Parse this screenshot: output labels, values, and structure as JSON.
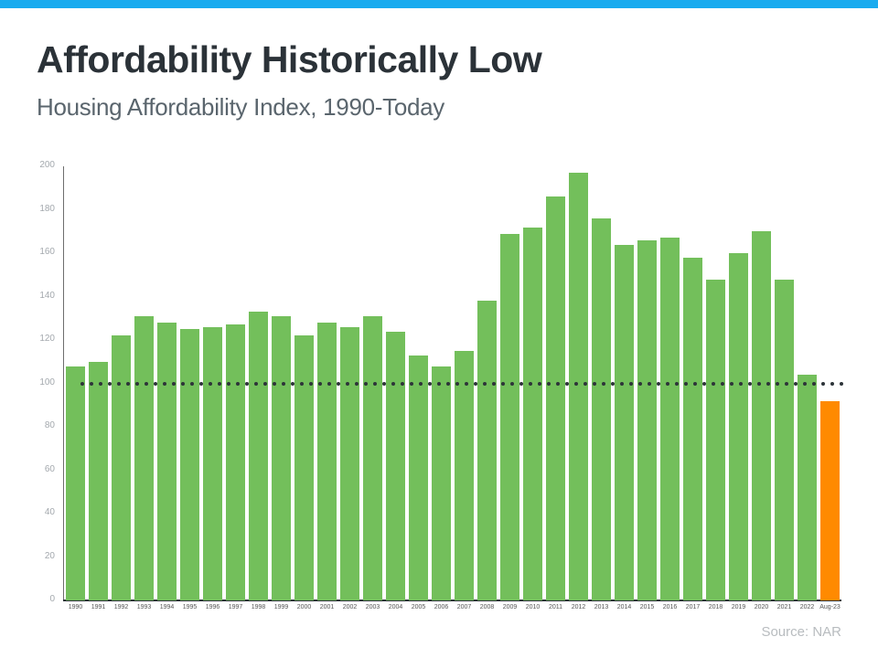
{
  "header": {
    "title": "Affordability Historically Low",
    "subtitle": "Housing Affordability Index, 1990-Today"
  },
  "footer": {
    "source": "Source: NAR"
  },
  "colors": {
    "top_bar": "#1aabef",
    "bar_default": "#73bf5b",
    "bar_highlight": "#ff8a00",
    "reference_line": "#2d3439"
  },
  "chart_data": {
    "type": "bar",
    "title": "Affordability Historically Low",
    "subtitle": "Housing Affordability Index, 1990-Today",
    "xlabel": "",
    "ylabel": "",
    "ylim": [
      0,
      200
    ],
    "yticks": [
      0,
      20,
      40,
      60,
      80,
      100,
      120,
      140,
      160,
      180,
      200
    ],
    "grid": false,
    "legend": null,
    "categories": [
      "1990",
      "1991",
      "1992",
      "1993",
      "1994",
      "1995",
      "1996",
      "1997",
      "1998",
      "1999",
      "2000",
      "2001",
      "2002",
      "2003",
      "2004",
      "2005",
      "2006",
      "2007",
      "2008",
      "2009",
      "2010",
      "2011",
      "2012",
      "2013",
      "2014",
      "2015",
      "2016",
      "2017",
      "2018",
      "2019",
      "2020",
      "2021",
      "2022",
      "Aug-23"
    ],
    "values": [
      108,
      110,
      122,
      131,
      128,
      125,
      126,
      127,
      133,
      131,
      122,
      128,
      126,
      131,
      124,
      113,
      108,
      115,
      138,
      169,
      172,
      186,
      197,
      176,
      164,
      166,
      167,
      158,
      148,
      160,
      170,
      148,
      104,
      92
    ],
    "highlight_index": 33,
    "reference_line": {
      "value": 100,
      "style": "dotted"
    },
    "annotations": [
      "Source: NAR"
    ]
  }
}
